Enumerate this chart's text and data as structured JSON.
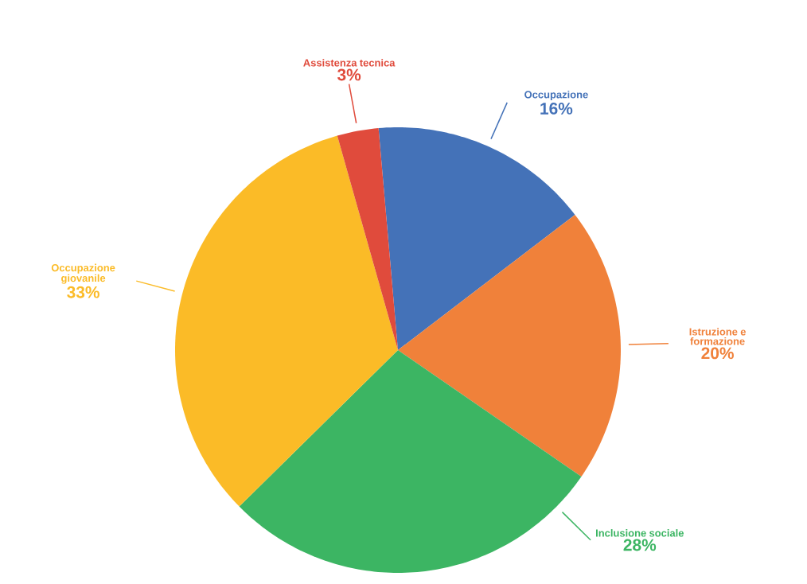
{
  "chart_data": {
    "type": "pie",
    "categories": [
      "Occupazione",
      "Istruzione e formazione",
      "Inclusione sociale",
      "Occupazione giovanile",
      "Assistenza tecnica"
    ],
    "values": [
      16,
      20,
      28,
      33,
      3
    ],
    "value_labels": [
      "16%",
      "20%",
      "28%",
      "33%",
      "3%"
    ],
    "colors": [
      "#4472b8",
      "#f0813a",
      "#3cb563",
      "#fbbb27",
      "#e04b3c"
    ]
  }
}
